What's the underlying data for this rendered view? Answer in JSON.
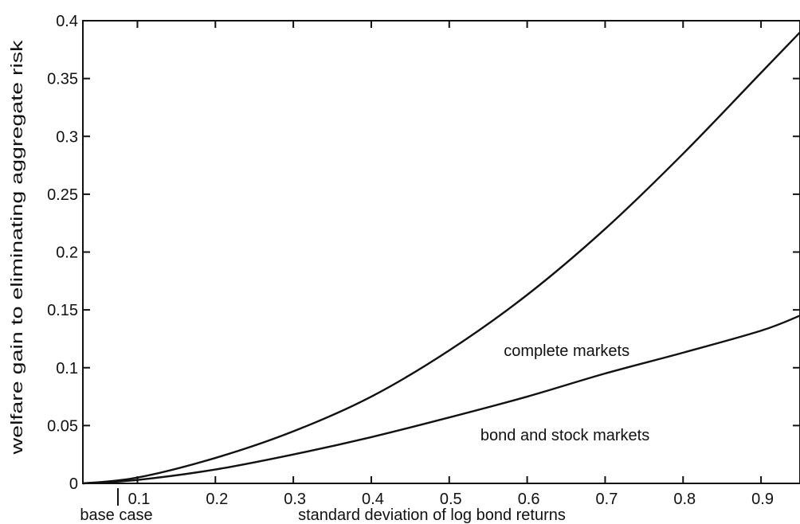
{
  "chart_data": {
    "type": "line",
    "title": "",
    "xlabel": "standard deviation of log bond returns",
    "ylabel": "welfare gain to eliminating aggregate risk",
    "xlim": [
      0.03,
      0.95
    ],
    "ylim": [
      0,
      0.4
    ],
    "grid": false,
    "legend": "none",
    "x_ticks": [
      0.1,
      0.2,
      0.3,
      0.4,
      0.5,
      0.6,
      0.7,
      0.8,
      0.9
    ],
    "x_tick_labels": [
      "0.1",
      "0.2",
      "0.3",
      "0.4",
      "0.5",
      "0.6",
      "0.7",
      "0.8",
      "0.9"
    ],
    "y_ticks": [
      0,
      0.05,
      0.1,
      0.15,
      0.2,
      0.25,
      0.3,
      0.35,
      0.4
    ],
    "y_tick_labels": [
      "0",
      "0.05",
      "0.1",
      "0.15",
      "0.2",
      "0.25",
      "0.3",
      "0.35",
      "0.4"
    ],
    "series": [
      {
        "label": "complete markets",
        "x": [
          0.03,
          0.1,
          0.2,
          0.3,
          0.4,
          0.5,
          0.6,
          0.7,
          0.8,
          0.9,
          0.95
        ],
        "y": [
          0.0,
          0.005,
          0.022,
          0.045,
          0.075,
          0.115,
          0.163,
          0.22,
          0.285,
          0.355,
          0.39
        ]
      },
      {
        "label": "bond and stock markets",
        "x": [
          0.03,
          0.1,
          0.2,
          0.3,
          0.4,
          0.5,
          0.6,
          0.7,
          0.8,
          0.9,
          0.95
        ],
        "y": [
          0.0,
          0.003,
          0.012,
          0.025,
          0.04,
          0.057,
          0.075,
          0.095,
          0.113,
          0.132,
          0.145
        ]
      }
    ],
    "annotations": [
      {
        "text": "complete markets",
        "x": 0.57,
        "y": 0.115
      },
      {
        "text": "bond and stock markets",
        "x": 0.54,
        "y": 0.042
      },
      {
        "text": "base case",
        "x": 0.075,
        "marker": "vertical line below x-axis"
      }
    ]
  }
}
